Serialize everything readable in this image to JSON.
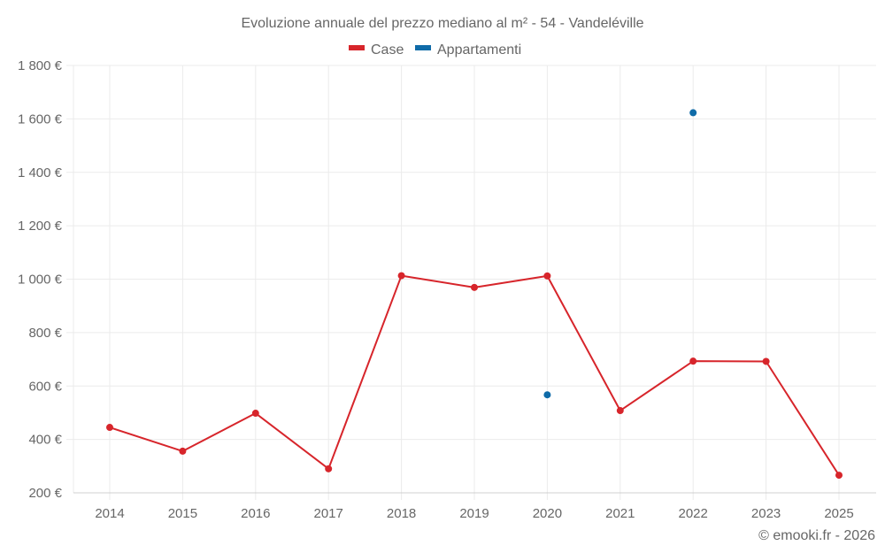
{
  "chart_data": {
    "type": "line",
    "title": "Evoluzione annuale del prezzo mediano al m² - 54 - Vandeléville",
    "xlabel": "",
    "ylabel": "",
    "categories": [
      "2014",
      "2015",
      "2016",
      "2017",
      "2018",
      "2019",
      "2020",
      "2021",
      "2022",
      "2023",
      "2025"
    ],
    "series": [
      {
        "name": "Case",
        "color": "#d7252b",
        "values": [
          445,
          356,
          498,
          290,
          1013,
          969,
          1012,
          508,
          693,
          692,
          266
        ]
      },
      {
        "name": "Appartamenti",
        "color": "#0f6ba8",
        "values": [
          null,
          null,
          null,
          null,
          null,
          null,
          567,
          null,
          1623,
          null,
          null
        ]
      }
    ],
    "yticks": [
      200,
      400,
      600,
      800,
      1000,
      1200,
      1400,
      1600,
      1800
    ],
    "ytick_labels": [
      "200 €",
      "400 €",
      "600 €",
      "800 €",
      "1 000 €",
      "1 200 €",
      "1 400 €",
      "1 600 €",
      "1 800 €"
    ],
    "ylim": [
      200,
      1800
    ],
    "grid": true,
    "legend_position": "top-center"
  },
  "legend": {
    "items": [
      {
        "label": "Case",
        "color": "#d7252b"
      },
      {
        "label": "Appartamenti",
        "color": "#0f6ba8"
      }
    ]
  },
  "credit": "© emooki.fr - 2026"
}
